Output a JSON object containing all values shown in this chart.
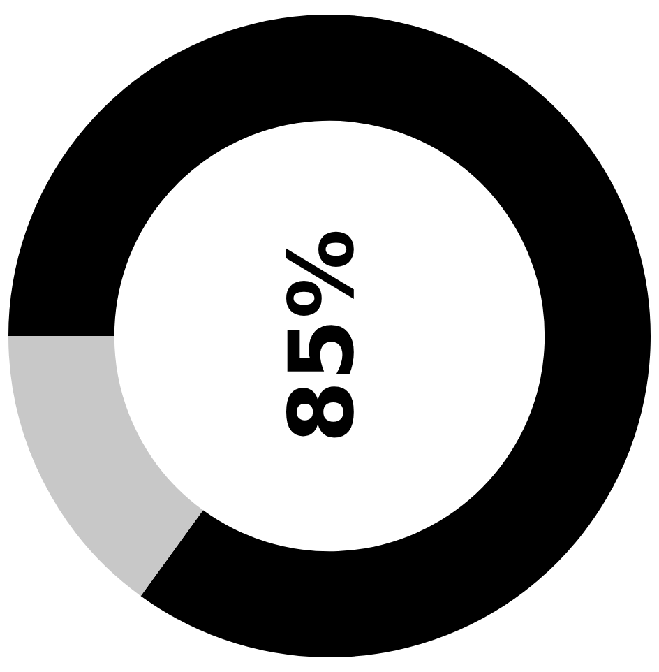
{
  "chart_data": {
    "type": "donut",
    "categories": [
      null,
      null
    ],
    "values": [
      85,
      15
    ],
    "colors": [
      "#000000",
      "#c8c8c8"
    ],
    "annotations": [
      "85%"
    ],
    "legend": false
  }
}
